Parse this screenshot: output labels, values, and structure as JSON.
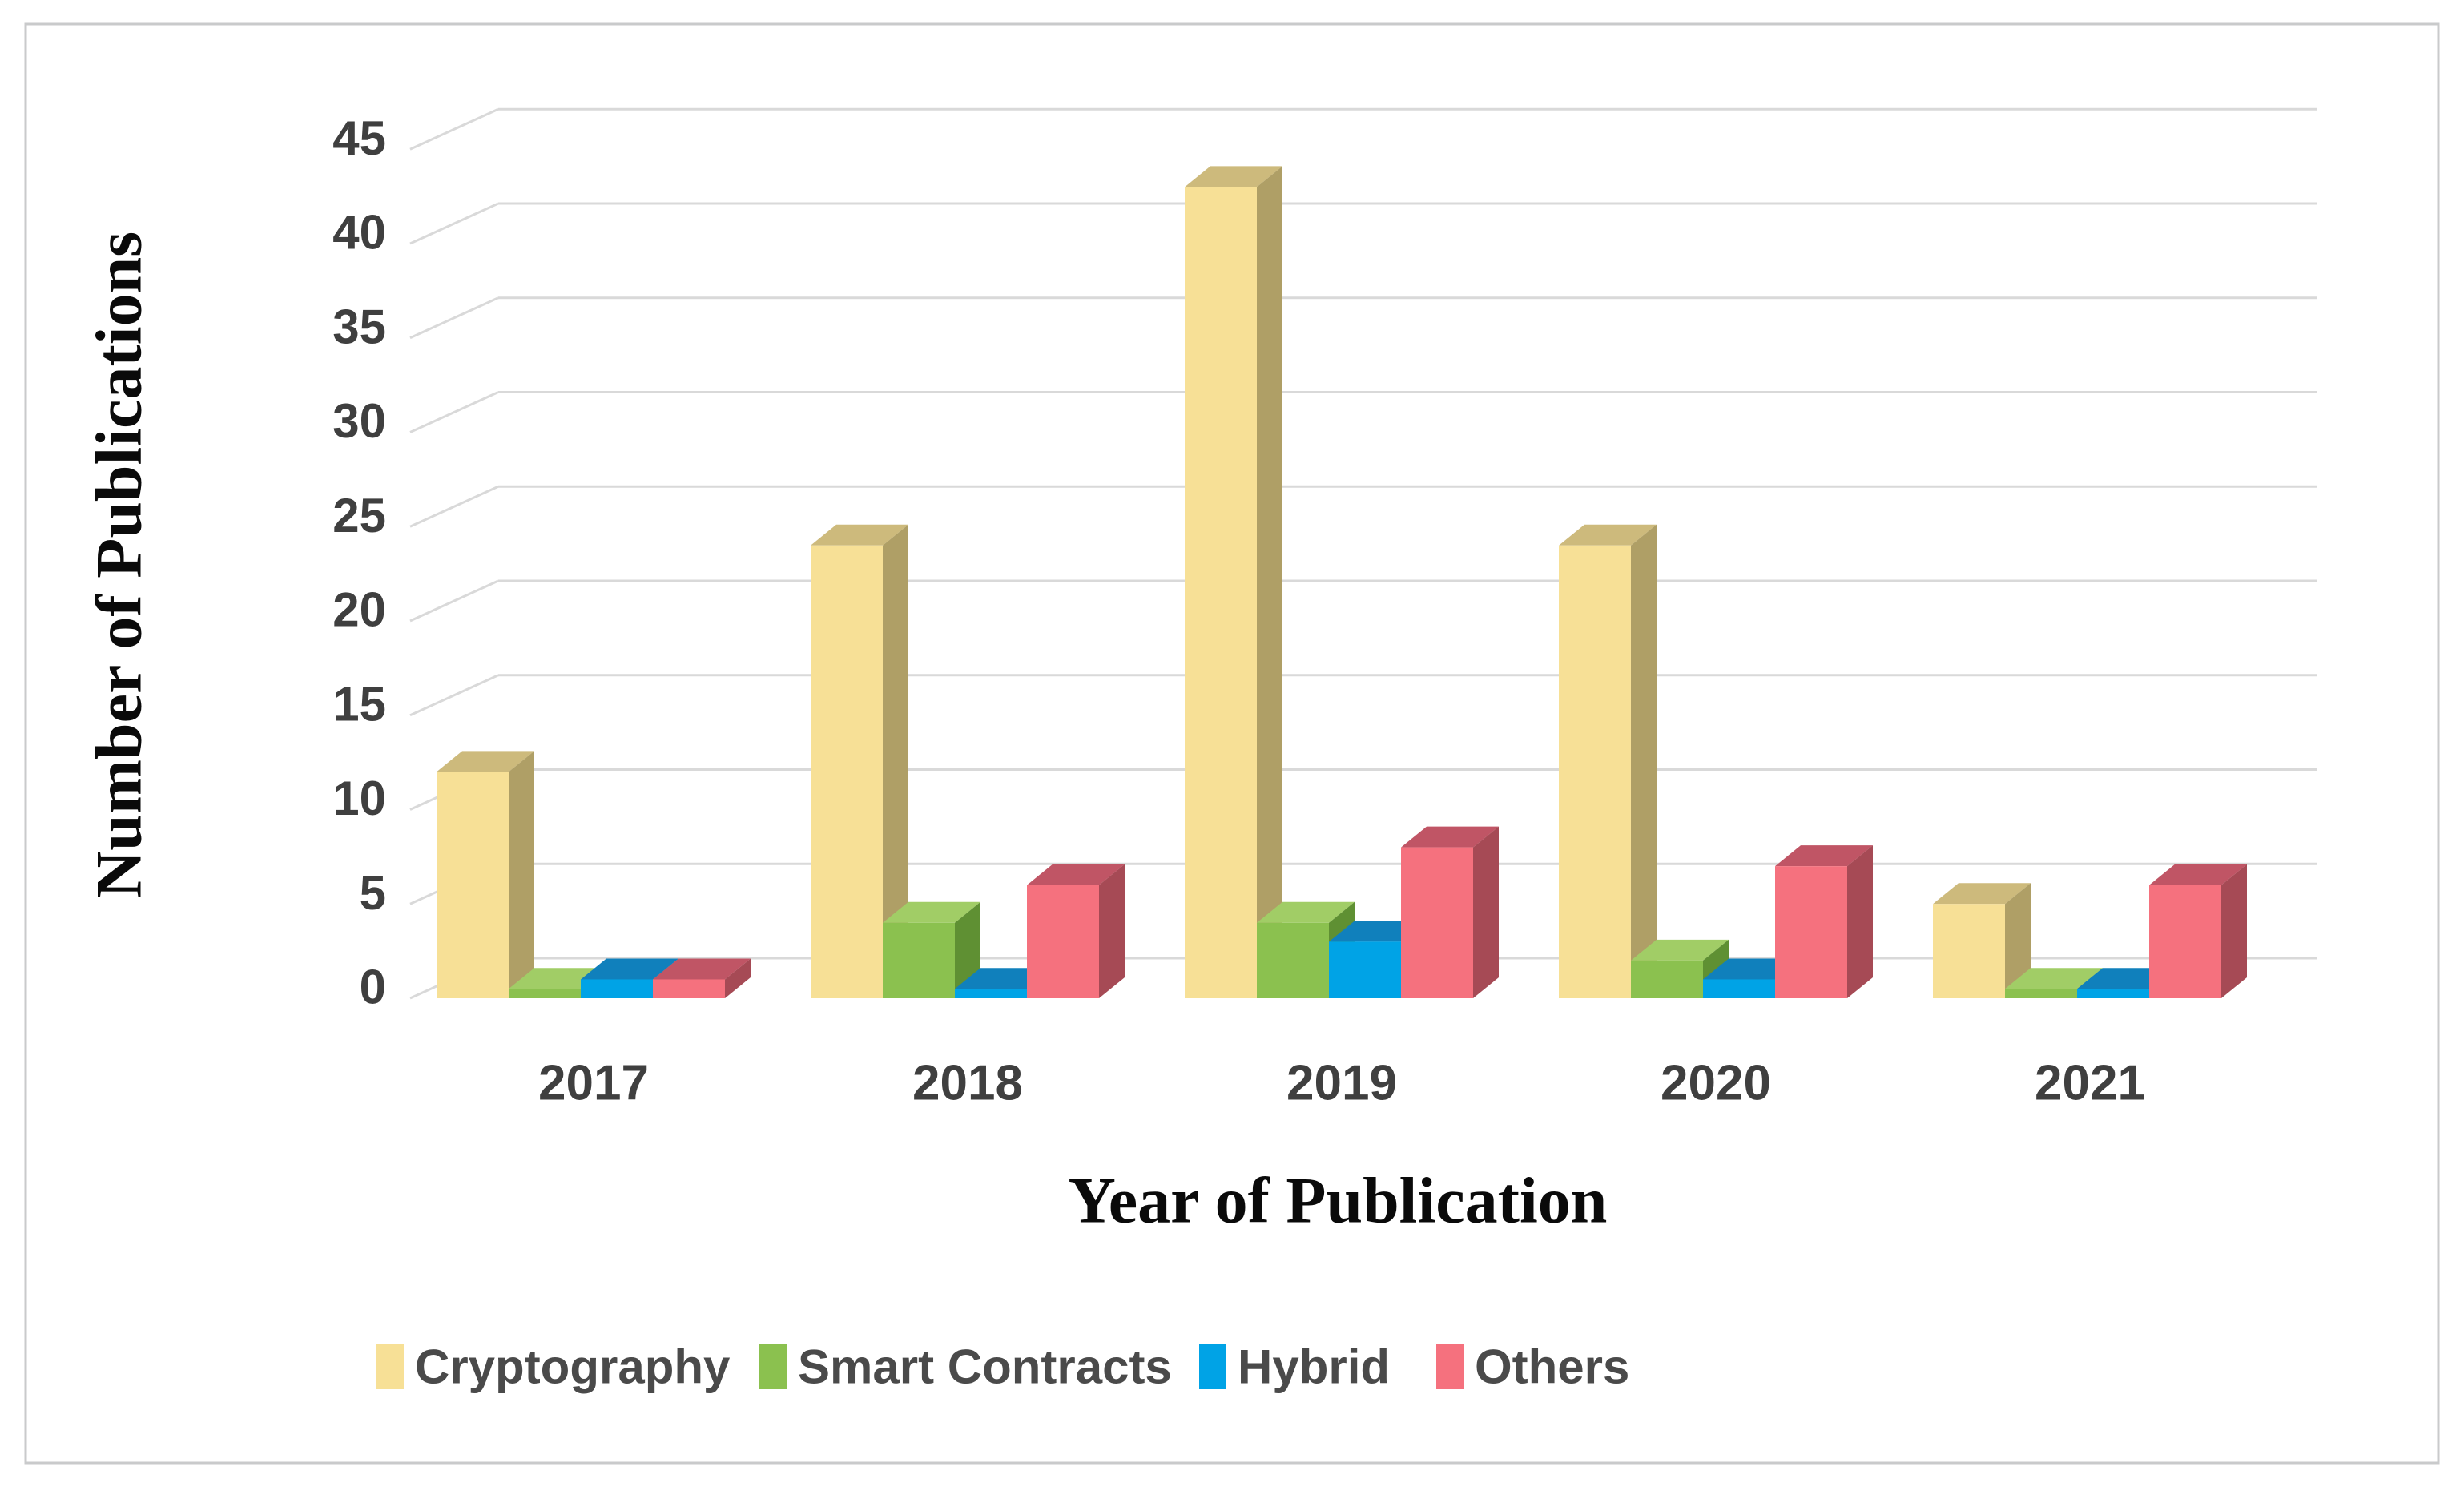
{
  "figure": {
    "background": "#ffffff",
    "border_color": "#c9cacb"
  },
  "chart_data": {
    "type": "bar",
    "variant": "3d-clustered-column",
    "title": "",
    "xlabel": "Year of Publication",
    "ylabel": "Number of Publications",
    "categories": [
      "2017",
      "2018",
      "2019",
      "2020",
      "2021"
    ],
    "series": [
      {
        "name": "Cryptography",
        "color": "#F7E096",
        "top_color": "#CDBA7C",
        "side_color": "#AF9F66",
        "values": [
          12,
          24,
          43,
          24,
          5
        ]
      },
      {
        "name": "Smart Contracts",
        "color": "#8BC14F",
        "top_color": "#A1CD66",
        "side_color": "#5F9033",
        "values": [
          0.5,
          4,
          4,
          2,
          0.5
        ]
      },
      {
        "name": "Hybrid",
        "color": "#00A3E6",
        "top_color": "#1080BC",
        "side_color": "#0B6FA6",
        "values": [
          1,
          0.5,
          3,
          1,
          0.5
        ]
      },
      {
        "name": "Others",
        "color": "#F5717E",
        "top_color": "#C05565",
        "side_color": "#A64A55",
        "values": [
          1,
          6,
          8,
          7,
          6
        ]
      }
    ],
    "ylim": [
      0,
      45
    ],
    "ytick_step": 5,
    "yticks": [
      "0",
      "5",
      "10",
      "15",
      "20",
      "25",
      "30",
      "35",
      "40",
      "45"
    ],
    "grid": true,
    "legend_position": "bottom",
    "colors": {
      "gridline": "#D9D9D9",
      "tick_text": "#3F3F3F",
      "category_text": "#3F3F3F",
      "legend_text": "#4A4A4A",
      "axis_title_text": "#0A0A0A"
    }
  }
}
